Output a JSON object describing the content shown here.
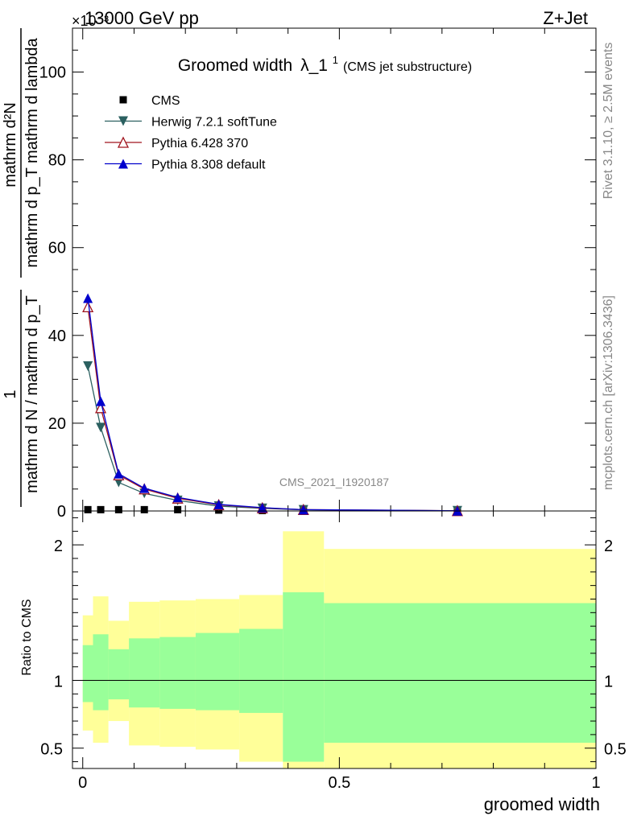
{
  "header": {
    "energy_label": "13000 GeV pp",
    "process_label": "Z+Jet",
    "exponent_label": "×10⁻³"
  },
  "side_labels": {
    "rivet": "Rivet 3.1.10, ≥ 2.5M events",
    "mcplots": "mcplots.cern.ch [arXiv:1306.3436]"
  },
  "chart_data": [
    {
      "type": "line",
      "title": "Groomed width λ_1¹",
      "title_main": "Groomed width",
      "title_lambda": "λ_1",
      "title_sup": "1",
      "subtitle": "(CMS jet substructure)",
      "watermark": "CMS_2021_I1920187",
      "ylabel_numerator": "1",
      "ylabel_inner_num": "mathrm d²N",
      "ylabel_inner_den": "mathrm d p_T mathrm d lambda",
      "ylabel_den": "mathrm d N / mathrm d p_T",
      "ylim": [
        0,
        110
      ],
      "yticks": [
        0,
        20,
        40,
        60,
        80,
        100
      ],
      "ytick_labels": [
        "0",
        "20",
        "40",
        "60",
        "80",
        "100"
      ],
      "xlim": [
        -0.02,
        1.0
      ],
      "legend_position": "top-left",
      "x": [
        0.01,
        0.035,
        0.07,
        0.12,
        0.185,
        0.265,
        0.35,
        0.43,
        0.73
      ],
      "series": [
        {
          "name": "CMS",
          "color": "#000000",
          "marker": "square",
          "values": [
            0.3,
            0.3,
            0.3,
            0.3,
            0.3,
            0.2,
            0.1,
            0.1,
            0.05
          ]
        },
        {
          "name": "Herwig 7.2.1 softTune",
          "color": "#2b6060",
          "marker": "triangle-down",
          "values": [
            33,
            19,
            6.5,
            4.0,
            2.4,
            1.1,
            0.6,
            0.25,
            0.05
          ]
        },
        {
          "name": "Pythia 6.428 370",
          "color": "#a0141e",
          "marker": "triangle-up-open",
          "values": [
            46.5,
            23.5,
            8.2,
            5.0,
            2.9,
            1.4,
            0.7,
            0.3,
            0.05
          ]
        },
        {
          "name": "Pythia 8.308 default",
          "color": "#0000cc",
          "marker": "triangle-up",
          "values": [
            48.5,
            25.0,
            8.5,
            5.2,
            3.1,
            1.5,
            0.75,
            0.3,
            0.05
          ]
        }
      ]
    },
    {
      "type": "area",
      "ylabel": "Ratio to CMS",
      "xlabel": "groomed width",
      "xlim": [
        -0.02,
        1.0
      ],
      "ylim": [
        0.35,
        2.25
      ],
      "xticks": [
        0,
        0.5,
        1
      ],
      "xtick_labels": [
        "0",
        "0.5",
        "1"
      ],
      "yticks": [
        0.5,
        1,
        2
      ],
      "ytick_labels": [
        "0.5",
        "1",
        "2"
      ],
      "reference": 1,
      "bin_edges": [
        0,
        0.02,
        0.05,
        0.09,
        0.15,
        0.22,
        0.305,
        0.39,
        0.47,
        1.0
      ],
      "band_stat": {
        "name": "stat",
        "color": "#99ff99",
        "low": [
          0.84,
          0.78,
          0.86,
          0.8,
          0.79,
          0.78,
          0.76,
          0.4,
          0.54
        ],
        "high": [
          1.26,
          1.34,
          1.23,
          1.31,
          1.32,
          1.35,
          1.38,
          1.65,
          1.57
        ]
      },
      "band_total": {
        "name": "stat+syst",
        "color": "#ffff99",
        "low": [
          0.63,
          0.54,
          0.7,
          0.52,
          0.51,
          0.49,
          0.4,
          0.35,
          0.35
        ],
        "high": [
          1.48,
          1.62,
          1.44,
          1.58,
          1.59,
          1.6,
          1.63,
          2.1,
          1.97
        ]
      }
    }
  ]
}
